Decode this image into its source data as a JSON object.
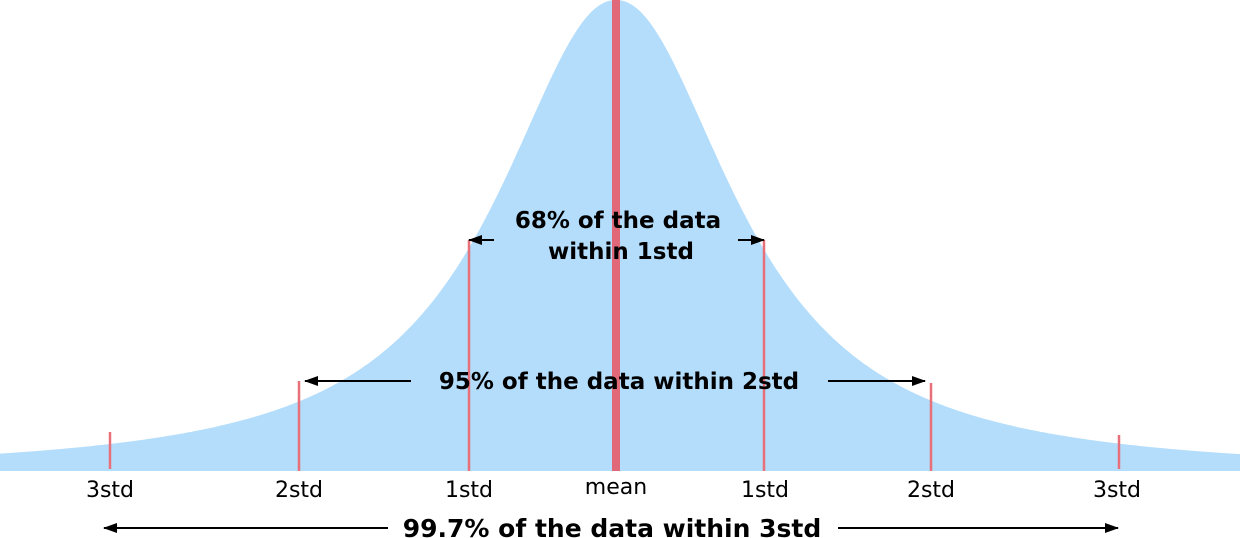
{
  "diagram": {
    "colors": {
      "curve_fill": "#b3ddfb",
      "marker_line": "#e8707a",
      "mean_line": "#e06878",
      "arrow": "#000000",
      "text": "#000000"
    },
    "labels": {
      "left_3": "3std",
      "left_2": "2std",
      "left_1": "1std",
      "mean": "mean",
      "right_1": "1std",
      "right_2": "2std",
      "right_3": "3std"
    },
    "annotations": {
      "one_std_line1": "68% of the data",
      "one_std_line2": "within 1std",
      "two_std": "95% of the data within 2std",
      "three_std": "99.7% of the data within 3std"
    }
  }
}
